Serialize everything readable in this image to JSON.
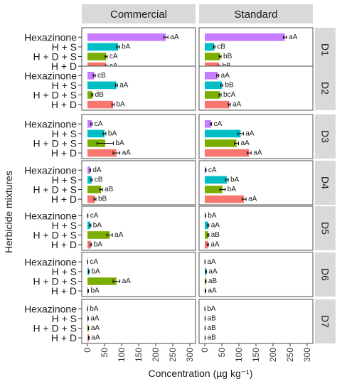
{
  "chart_data": {
    "type": "bar",
    "orientation": "horizontal",
    "xlabel": "Concentration (µg kg⁻¹)",
    "ylabel": "Herbicide mixtures",
    "xlim": [
      0,
      300
    ],
    "xticks": [
      0,
      50,
      100,
      150,
      200,
      250,
      300
    ],
    "columns": [
      "Commercial",
      "Standard"
    ],
    "rows": [
      "D1",
      "D2",
      "D3",
      "D4",
      "D5",
      "D6",
      "D7"
    ],
    "categories": [
      "Hexazinone",
      "H + S",
      "H + D + S",
      "H + D"
    ],
    "series_colors": [
      "#c77cff",
      "#00bfc4",
      "#7cae00",
      "#f8766d"
    ],
    "panels": [
      {
        "column": "Commercial",
        "row": "D1",
        "values": [
          230,
          90,
          55,
          55
        ],
        "errors": [
          6,
          4,
          3,
          3
        ],
        "labels": [
          "aA",
          "bA",
          "cA",
          "cA"
        ]
      },
      {
        "column": "Standard",
        "row": "D1",
        "values": [
          235,
          28,
          45,
          42
        ],
        "errors": [
          5,
          2,
          3,
          3
        ],
        "labels": [
          "aA",
          "cB",
          "bB",
          "bB"
        ]
      },
      {
        "column": "Commercial",
        "row": "D2",
        "values": [
          20,
          85,
          14,
          75
        ],
        "errors": [
          3,
          3,
          2,
          3
        ],
        "labels": [
          "cB",
          "aA",
          "dB",
          "bA"
        ]
      },
      {
        "column": "Standard",
        "row": "D2",
        "values": [
          38,
          50,
          45,
          72
        ],
        "errors": [
          3,
          3,
          3,
          3
        ],
        "labels": [
          "aA",
          "bB",
          "bcA",
          "aA"
        ]
      },
      {
        "column": "Commercial",
        "row": "D3",
        "values": [
          12,
          50,
          52,
          85
        ],
        "errors": [
          2,
          4,
          24,
          10
        ],
        "labels": [
          "cA",
          "bA",
          "bA",
          "aA"
        ]
      },
      {
        "column": "Standard",
        "row": "D3",
        "values": [
          18,
          105,
          93,
          130
        ],
        "errors": [
          2,
          8,
          6,
          6
        ],
        "labels": [
          "cA",
          "aA",
          "aA",
          "aA"
        ]
      },
      {
        "column": "Commercial",
        "row": "D4",
        "values": [
          8,
          12,
          40,
          22
        ],
        "errors": [
          1,
          2,
          4,
          3
        ],
        "labels": [
          "dA",
          "cB",
          "aB",
          "bB"
        ]
      },
      {
        "column": "Standard",
        "row": "D4",
        "values": [
          3,
          65,
          52,
          115
        ],
        "errors": [
          1,
          4,
          8,
          6
        ],
        "labels": [
          "cA",
          "bA",
          "bA",
          "aA"
        ]
      },
      {
        "column": "Commercial",
        "row": "D5",
        "values": [
          1,
          8,
          65,
          10
        ],
        "errors": [
          0.5,
          2,
          8,
          2
        ],
        "labels": [
          "cA",
          "bA",
          "aA",
          "bA"
        ]
      },
      {
        "column": "Standard",
        "row": "D5",
        "values": [
          2,
          10,
          10,
          9
        ],
        "errors": [
          0.5,
          2,
          2,
          2
        ],
        "labels": [
          "bA",
          "aA",
          "aB",
          "aA"
        ]
      },
      {
        "column": "Commercial",
        "row": "D6",
        "values": [
          0.5,
          4,
          85,
          2
        ],
        "errors": [
          0.2,
          1,
          10,
          1
        ],
        "labels": [
          "cA",
          "bA",
          "aA",
          "bA"
        ]
      },
      {
        "column": "Standard",
        "row": "D6",
        "values": [
          0.5,
          4,
          3,
          2
        ],
        "errors": [
          0.2,
          1,
          1,
          1
        ],
        "labels": [
          "aA",
          "aA",
          "aB",
          "aA"
        ]
      },
      {
        "column": "Commercial",
        "row": "D7",
        "values": [
          0.3,
          2,
          3,
          4
        ],
        "errors": [
          0.1,
          0.5,
          0.8,
          1
        ],
        "labels": [
          "bA",
          "aA",
          "aA",
          "aA"
        ]
      },
      {
        "column": "Standard",
        "row": "D7",
        "values": [
          0.3,
          1,
          1,
          1
        ],
        "errors": [
          0.1,
          0.3,
          0.3,
          0.3
        ],
        "labels": [
          "bA",
          "aB",
          "aB",
          "aB"
        ]
      }
    ]
  }
}
